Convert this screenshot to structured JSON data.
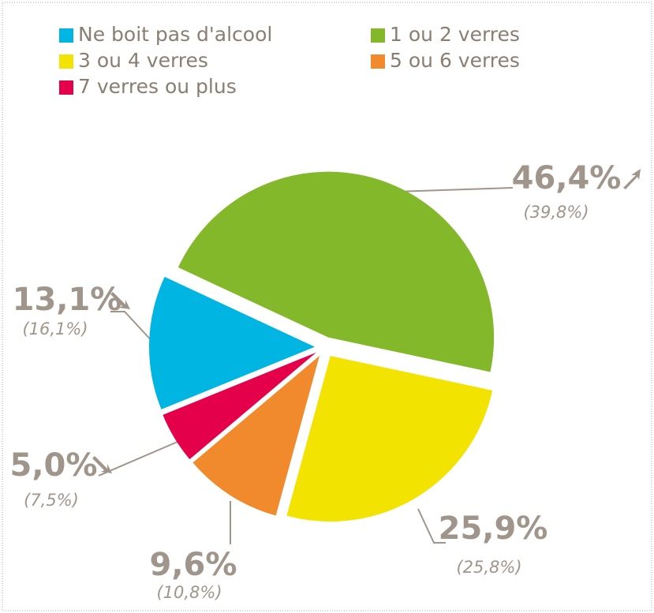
{
  "chart_data": {
    "type": "pie",
    "categories": [
      "Ne boit pas d'alcool",
      "1 ou 2 verres",
      "3 ou 4 verres",
      "5 ou 6 verres",
      "7 verres ou plus"
    ],
    "values": [
      13.1,
      46.4,
      25.9,
      9.6,
      5.0
    ],
    "value_labels": [
      "13,1%",
      "46,4%",
      "25,9%",
      "9,6%",
      "5,0%"
    ],
    "previous_labels": [
      "(16,1%)",
      "(39,8%)",
      "(25,8%)",
      "(10,8%)",
      "(7,5%)"
    ],
    "colors": [
      "#00b5e2",
      "#84b82b",
      "#f2e300",
      "#f08a2c",
      "#e4004b"
    ],
    "legend": true
  }
}
